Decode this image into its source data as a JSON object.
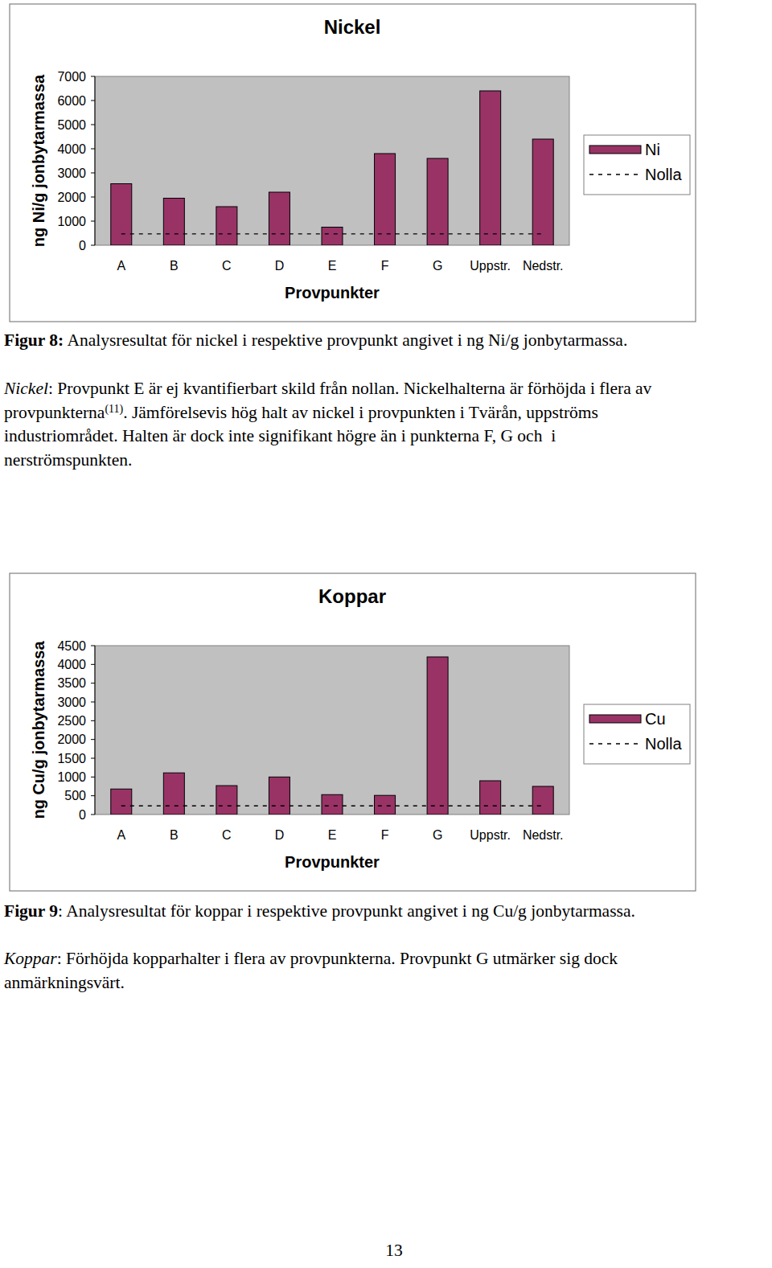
{
  "chart_data": [
    {
      "type": "bar",
      "title": "Nickel",
      "x_label": "Provpunkter",
      "y_label": "ng Ni/g jonbytarmassa",
      "categories": [
        "A",
        "B",
        "C",
        "D",
        "E",
        "F",
        "G",
        "Uppstr.",
        "Nedstr."
      ],
      "series": [
        {
          "name": "Ni",
          "type": "bar",
          "color": "#993366",
          "values": [
            2550,
            1950,
            1600,
            2200,
            750,
            3800,
            3600,
            6400,
            4400
          ]
        },
        {
          "name": "Nolla",
          "type": "line",
          "line_style": "dashed",
          "color": "#000000",
          "values": [
            470,
            470,
            470,
            470,
            470,
            470,
            470,
            470,
            470
          ]
        }
      ],
      "ylim": [
        0,
        7000
      ],
      "yticks": [
        0,
        1000,
        2000,
        3000,
        4000,
        5000,
        6000,
        7000
      ],
      "legend": "right"
    },
    {
      "type": "bar",
      "title": "Koppar",
      "x_label": "Provpunkter",
      "y_label": "ng Cu/g jonbytarmassa",
      "categories": [
        "A",
        "B",
        "C",
        "D",
        "E",
        "F",
        "G",
        "Uppstr.",
        "Nedstr."
      ],
      "series": [
        {
          "name": "Cu",
          "type": "bar",
          "color": "#993366",
          "values": [
            680,
            1110,
            770,
            1000,
            530,
            510,
            4200,
            900,
            750
          ]
        },
        {
          "name": "Nolla",
          "type": "line",
          "line_style": "dashed",
          "color": "#000000",
          "values": [
            230,
            230,
            230,
            230,
            230,
            230,
            230,
            230,
            230
          ]
        }
      ],
      "ylim": [
        0,
        4500
      ],
      "yticks": [
        0,
        500,
        1000,
        1500,
        2000,
        2500,
        3000,
        3500,
        4000,
        4500
      ],
      "legend": "right"
    }
  ],
  "captions": [
    [
      {
        "text": "Figur 8:",
        "style": "bold"
      },
      {
        "text": " Analysresultat för nickel i respektive provpunkt angivet i ng Ni/g jonbytarmassa."
      }
    ],
    [
      {
        "text": "Figur 9",
        "style": "bold"
      },
      {
        "text": ": Analysresultat för koppar i respektive provpunkt angivet i ng Cu/g jonbytarmassa."
      }
    ]
  ],
  "paragraphs": [
    {
      "lines": [
        [
          {
            "text": "Nickel",
            "style": "italic"
          },
          {
            "text": ": Provpunkt E är ej kvantifierbart skild från nollan. Nickelhalterna är förhöjda i flera av"
          }
        ],
        [
          {
            "text": "provpunkterna"
          },
          {
            "text": "(11)",
            "style": "sup"
          },
          {
            "text": ". Jämförelsevis hög halt av nickel i provpunkten i Tvärån, uppströms"
          }
        ],
        [
          {
            "text": "industriområdet. Halten är dock inte signifikant högre än i punkterna F, G och  i"
          }
        ],
        [
          {
            "text": "nerströmspunkten."
          }
        ]
      ]
    },
    {
      "lines": [
        [
          {
            "text": "Koppar",
            "style": "italic"
          },
          {
            "text": ": Förhöjda kopparhalter i flera av provpunkterna. Provpunkt G utmärker sig dock"
          }
        ],
        [
          {
            "text": "anmärkningsvärt."
          }
        ]
      ]
    }
  ],
  "page_number": "13"
}
